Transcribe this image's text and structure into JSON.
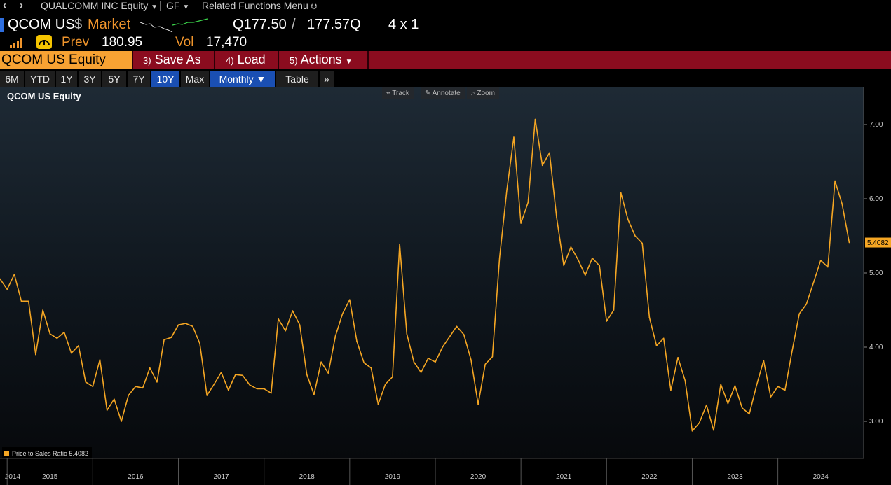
{
  "topbar": {
    "back_icon": "chevron-left-icon",
    "forward_icon": "chevron-right-icon",
    "security": "QUALCOMM INC Equity",
    "function": "GF",
    "related": "Related Functions Menu"
  },
  "header": {
    "ticker": "QCOM US",
    "currency": "$",
    "market_label": "Market",
    "bid": "Q177.50",
    "ask_sep": "/",
    "ask": "177.57Q",
    "size": "4 x 1",
    "prev_label": "Prev",
    "prev": "180.95",
    "vol_label": "Vol",
    "vol": "17,470"
  },
  "actions": {
    "security_field": "QCOM US Equity",
    "save_num": "3)",
    "save": "Save As",
    "load_num": "4)",
    "load": "Load",
    "actions_num": "5)",
    "actions_label": "Actions"
  },
  "ranges": {
    "items": [
      "6M",
      "YTD",
      "1Y",
      "3Y",
      "5Y",
      "7Y",
      "10Y",
      "Max"
    ],
    "selected": "10Y",
    "frequency": "Monthly",
    "table": "Table",
    "more": "»"
  },
  "chart_tools": {
    "track": "Track",
    "annotate": "Annotate",
    "zoom": "Zoom"
  },
  "colors": {
    "line": "#f5a623",
    "accent_orange": "#f0952c",
    "action_red": "#8b0c1f",
    "selected_blue": "#1a4fb3"
  },
  "chart_data": {
    "type": "line",
    "title": "QCOM US Equity",
    "xlabel": "",
    "ylabel": "",
    "ylim": [
      2.4,
      7.5
    ],
    "yticks": [
      "7.00",
      "6.00",
      "5.00",
      "4.00",
      "3.00"
    ],
    "xticks": [
      "2014",
      "2015",
      "2016",
      "2017",
      "2018",
      "2019",
      "2020",
      "2021",
      "2022",
      "2023",
      "2024"
    ],
    "last_value_label": "5.4082",
    "legend": "Price to Sales Ratio 5.4082",
    "series": [
      {
        "name": "Price to Sales Ratio",
        "x_start": "2013-12",
        "frequency": "monthly",
        "values": [
          4.92,
          4.78,
          4.98,
          4.62,
          4.62,
          3.9,
          4.5,
          4.18,
          4.12,
          4.2,
          3.92,
          4.02,
          3.53,
          3.47,
          3.83,
          3.15,
          3.3,
          3.0,
          3.35,
          3.47,
          3.45,
          3.72,
          3.53,
          4.1,
          4.13,
          4.3,
          4.32,
          4.28,
          4.05,
          3.35,
          3.5,
          3.66,
          3.42,
          3.63,
          3.62,
          3.49,
          3.44,
          3.44,
          3.38,
          4.38,
          4.22,
          4.49,
          4.3,
          3.63,
          3.36,
          3.8,
          3.65,
          4.15,
          4.45,
          4.64,
          4.08,
          3.79,
          3.72,
          3.23,
          3.5,
          3.6,
          5.39,
          4.18,
          3.8,
          3.66,
          3.85,
          3.8,
          4.0,
          4.14,
          4.28,
          4.17,
          3.83,
          3.23,
          3.77,
          3.87,
          5.2,
          6.1,
          6.83,
          5.67,
          5.95,
          7.07,
          6.45,
          6.62,
          5.75,
          5.1,
          5.35,
          5.18,
          4.97,
          5.2,
          5.1,
          4.35,
          4.5,
          6.08,
          5.72,
          5.5,
          5.4,
          4.4,
          4.02,
          4.12,
          3.42,
          3.86,
          3.55,
          2.87,
          2.98,
          3.22,
          2.88,
          3.5,
          3.24,
          3.48,
          3.18,
          3.1,
          3.48,
          3.82,
          3.33,
          3.47,
          3.42,
          3.95,
          4.45,
          4.58,
          4.87,
          5.17,
          5.08,
          6.24,
          5.93,
          5.41
        ]
      }
    ]
  }
}
